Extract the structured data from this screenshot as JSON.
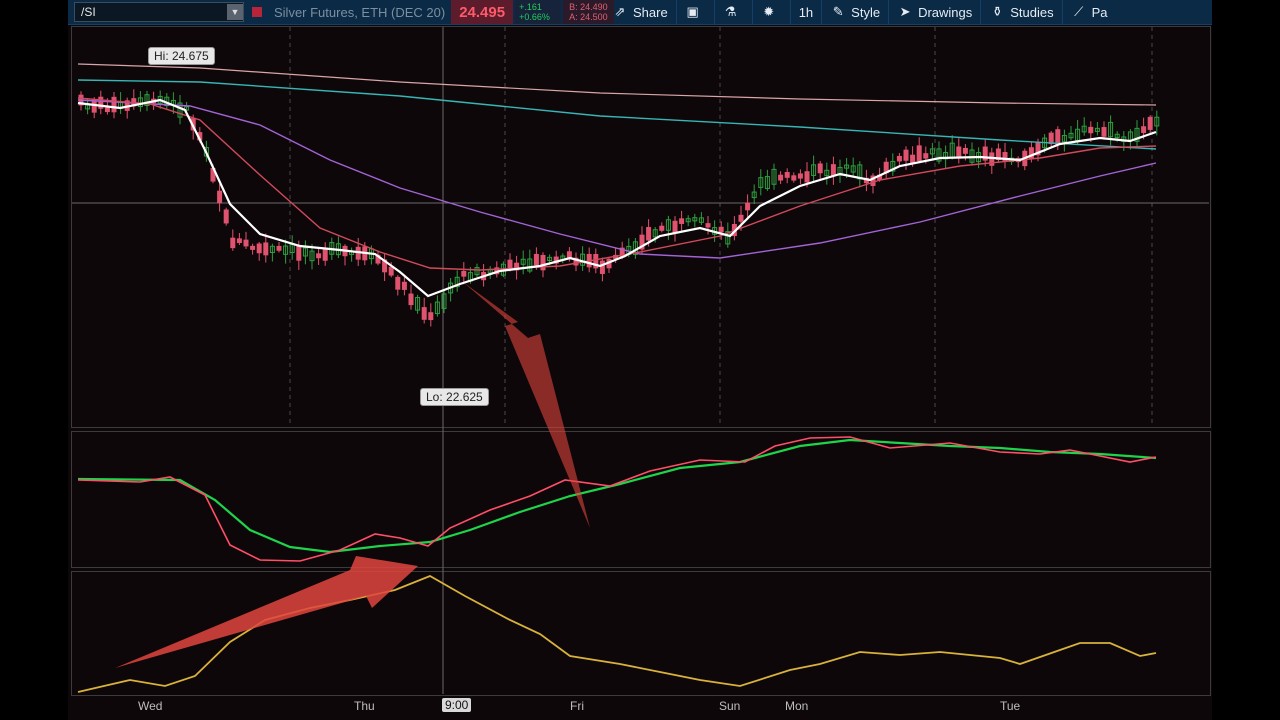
{
  "toolbar": {
    "symbol": "/SI",
    "instrument": "Silver Futures, ETH (DEC 20)",
    "last_price": "24.495",
    "change_abs": "+.161",
    "change_pct": "+0.66%",
    "bid": "B: 24.490",
    "ask": "A: 24.500",
    "share_label": "Share",
    "timeframe_label": "1h",
    "style_label": "Style",
    "drawings_label": "Drawings",
    "studies_label": "Studies",
    "pattern_label": "Pa"
  },
  "chart": {
    "hi_label": "Hi: 24.675",
    "lo_label": "Lo: 22.625",
    "x_labels": [
      "Wed",
      "Thu",
      "9:00",
      "Fri",
      "Sun",
      "Mon",
      "Tue"
    ],
    "colors": {
      "up": "#2e9e3e",
      "down": "#e0536e",
      "ma_fast": "#ffffff",
      "ma_mid": "#d04a5c",
      "ma_slow": "#a264d6",
      "ma_teal": "#37b6b6",
      "ma_flat": "#d9a6a8",
      "osc_red": "#ff4f68",
      "osc_green": "#1ed44a",
      "osc_yellow": "#d8b23a",
      "arrow": "#e0453e"
    }
  },
  "chart_data": {
    "type": "candlestick",
    "instrument": "Silver Futures, ETH (DEC 20)",
    "price_high": 24.675,
    "price_low": 22.625,
    "last": 24.495,
    "x_axis": [
      "Wed",
      "Thu",
      "9:00",
      "Fri",
      "Sun",
      "Mon",
      "Tue"
    ],
    "grid": true
  }
}
